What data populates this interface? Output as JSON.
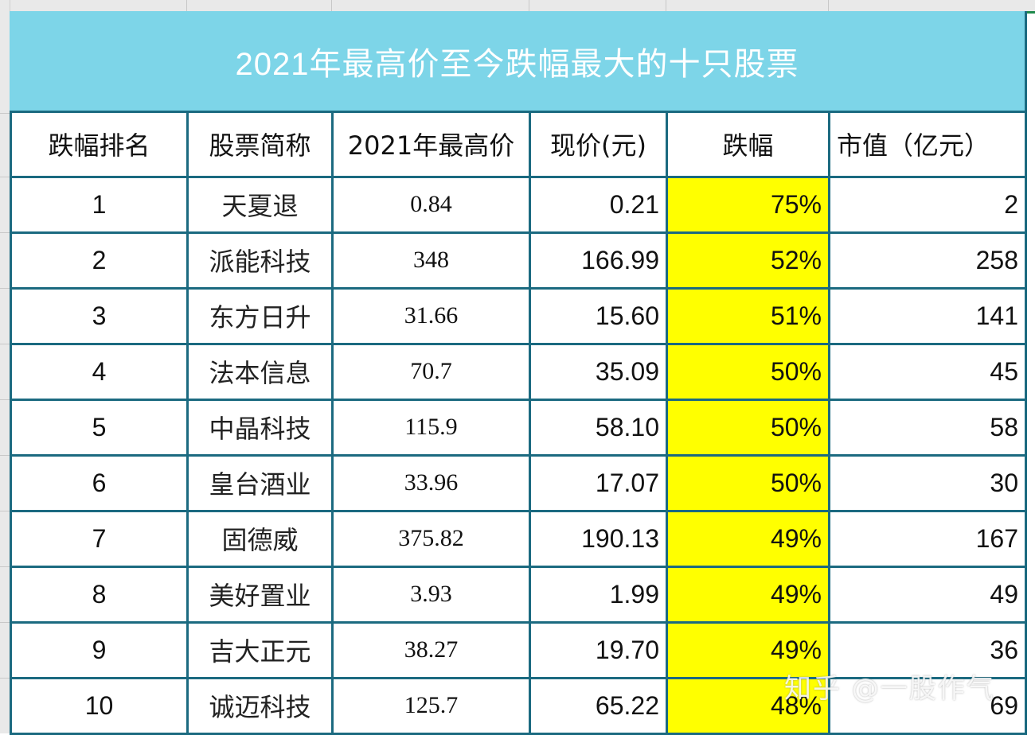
{
  "title": "2021年最高价至今跌幅最大的十只股票",
  "columns": [
    "跌幅排名",
    "股票简称",
    "2021年最高价",
    "现价(元)",
    "跌幅",
    "市值（亿元）"
  ],
  "rows": [
    {
      "rank": "1",
      "name": "天夏退",
      "high_2021": "0.84",
      "price": "0.21",
      "drop": "75%",
      "market_cap": "2"
    },
    {
      "rank": "2",
      "name": "派能科技",
      "high_2021": "348",
      "price": "166.99",
      "drop": "52%",
      "market_cap": "258"
    },
    {
      "rank": "3",
      "name": "东方日升",
      "high_2021": "31.66",
      "price": "15.60",
      "drop": "51%",
      "market_cap": "141"
    },
    {
      "rank": "4",
      "name": "法本信息",
      "high_2021": "70.7",
      "price": "35.09",
      "drop": "50%",
      "market_cap": "45"
    },
    {
      "rank": "5",
      "name": "中晶科技",
      "high_2021": "115.9",
      "price": "58.10",
      "drop": "50%",
      "market_cap": "58"
    },
    {
      "rank": "6",
      "name": "皇台酒业",
      "high_2021": "33.96",
      "price": "17.07",
      "drop": "50%",
      "market_cap": "30"
    },
    {
      "rank": "7",
      "name": "固德威",
      "high_2021": "375.82",
      "price": "190.13",
      "drop": "49%",
      "market_cap": "167"
    },
    {
      "rank": "8",
      "name": "美好置业",
      "high_2021": "3.93",
      "price": "1.99",
      "drop": "49%",
      "market_cap": "49"
    },
    {
      "rank": "9",
      "name": "吉大正元",
      "high_2021": "38.27",
      "price": "19.70",
      "drop": "49%",
      "market_cap": "36"
    },
    {
      "rank": "10",
      "name": "诚迈科技",
      "high_2021": "125.7",
      "price": "65.22",
      "drop": "48%",
      "market_cap": "69"
    }
  ],
  "watermark": "知乎 @一股作气",
  "colors": {
    "title_bg": "#7dd5e8",
    "title_text": "#ffffff",
    "border": "#1b6a80",
    "highlight": "#ffff00"
  }
}
